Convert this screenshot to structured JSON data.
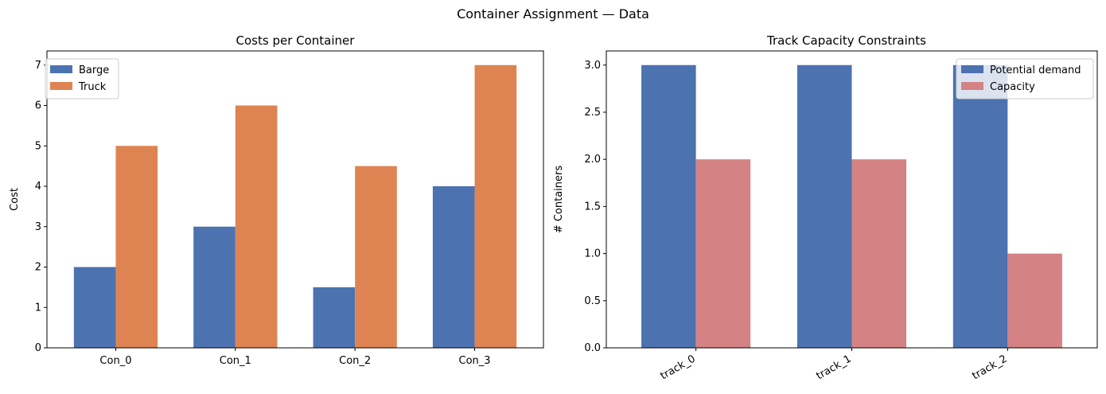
{
  "figure": {
    "suptitle": "Container Assignment — Data"
  },
  "chart_data": [
    {
      "type": "bar",
      "title": "Costs per Container",
      "xlabel": "",
      "ylabel": "Cost",
      "categories": [
        "Con_0",
        "Con_1",
        "Con_2",
        "Con_3"
      ],
      "series": [
        {
          "name": "Barge",
          "color": "#4c72b0",
          "values": [
            2,
            3,
            1.5,
            4
          ]
        },
        {
          "name": "Truck",
          "color": "#dd8452",
          "values": [
            5,
            6,
            4.5,
            7
          ]
        }
      ],
      "ylim": [
        0,
        7.35
      ],
      "yticks": [
        "0",
        "1",
        "2",
        "3",
        "4",
        "5",
        "6",
        "7"
      ],
      "grid": false,
      "legend_position": "upper-left"
    },
    {
      "type": "bar",
      "title": "Track Capacity Constraints",
      "xlabel": "",
      "ylabel": "# Containers",
      "categories": [
        "track_0",
        "track_1",
        "track_2"
      ],
      "series": [
        {
          "name": "Potential demand",
          "color": "#4c72b0",
          "values": [
            3,
            3,
            3
          ]
        },
        {
          "name": "Capacity",
          "color": "#d48284",
          "values": [
            2,
            2,
            1
          ]
        }
      ],
      "ylim": [
        0,
        3.15
      ],
      "yticks": [
        "0.0",
        "0.5",
        "1.0",
        "1.5",
        "2.0",
        "2.5",
        "3.0"
      ],
      "grid": false,
      "legend_position": "upper-right",
      "xtick_rotation": "rotated"
    }
  ]
}
